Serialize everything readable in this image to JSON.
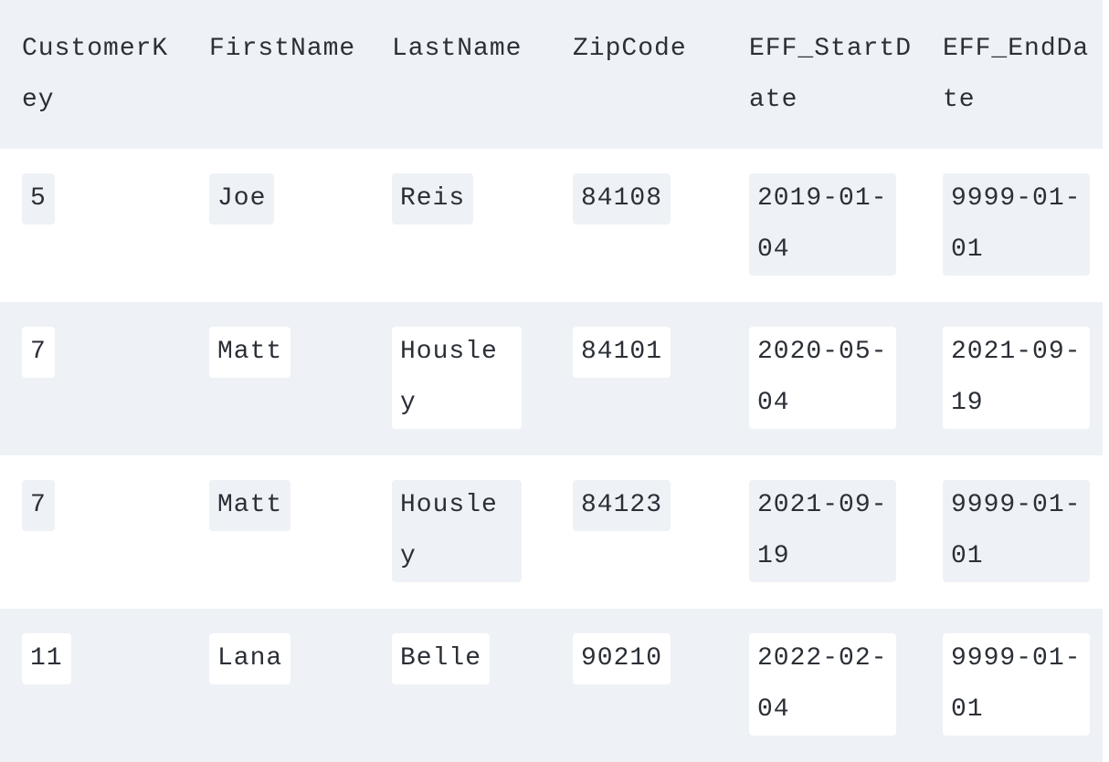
{
  "table": {
    "headers": [
      "CustomerKey",
      "FirstName",
      "LastName",
      "ZipCode",
      "EFF_StartDate",
      "EFF_EndDate"
    ],
    "rows": [
      [
        "5",
        "Joe",
        "Reis",
        "84108",
        "2019-01-04",
        "9999-01-01"
      ],
      [
        "7",
        "Matt",
        "Housley",
        "84101",
        "2020-05-04",
        "2021-09-19"
      ],
      [
        "7",
        "Matt",
        "Housley",
        "84123",
        "2021-09-19",
        "9999-01-01"
      ],
      [
        "11",
        "Lana",
        "Belle",
        "90210",
        "2022-02-04",
        "9999-01-01"
      ]
    ]
  },
  "colors": {
    "stripe": "#eef1f6",
    "text": "#2b2f36"
  }
}
